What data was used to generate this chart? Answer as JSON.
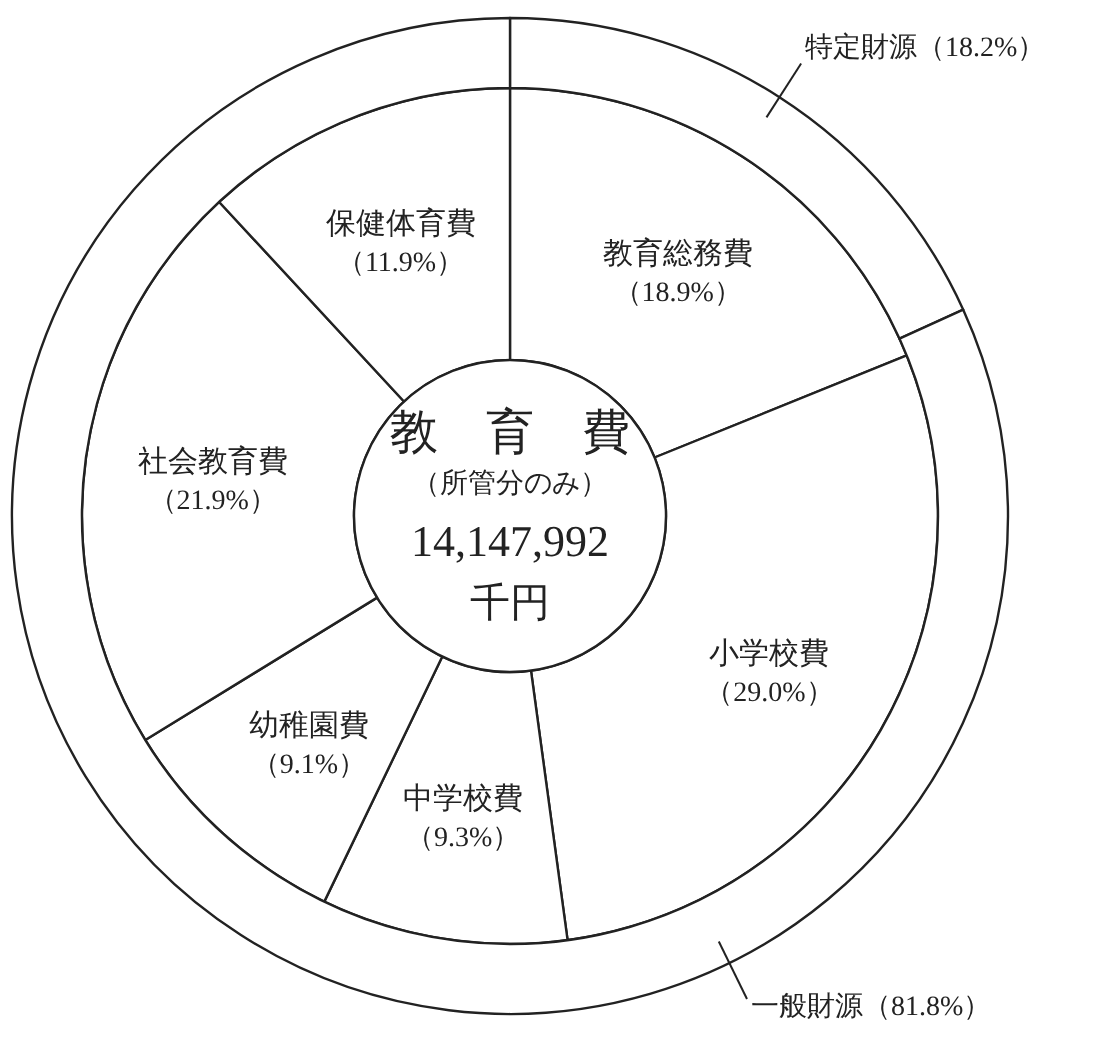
{
  "chart_data": [
    {
      "type": "donut",
      "categories": [
        "教育総務費",
        "小学校費",
        "中学校費",
        "幼稚園費",
        "社会教育費",
        "保健体育費"
      ],
      "values": [
        18.9,
        29.0,
        9.3,
        9.1,
        21.9,
        11.9
      ],
      "value_labels": [
        "（18.9%）",
        "（29.0%）",
        "（9.3%）",
        "（9.1%）",
        "（21.9%）",
        "（11.9%）"
      ],
      "colors": [
        "#ffffff",
        "#ffffff",
        "#ffffff",
        "#ffffff",
        "#ffffff",
        "#ffffff"
      ],
      "annotations": [
        "教　育　費",
        "（所管分のみ）",
        "14,147,992",
        "千円"
      ]
    },
    {
      "type": "donut",
      "categories": [
        "特定財源",
        "一般財源"
      ],
      "values": [
        18.2,
        81.8
      ],
      "value_labels": [
        "（18.2%）",
        "（81.8%）"
      ],
      "colors": [
        "#ffffff",
        "#ffffff"
      ]
    }
  ]
}
